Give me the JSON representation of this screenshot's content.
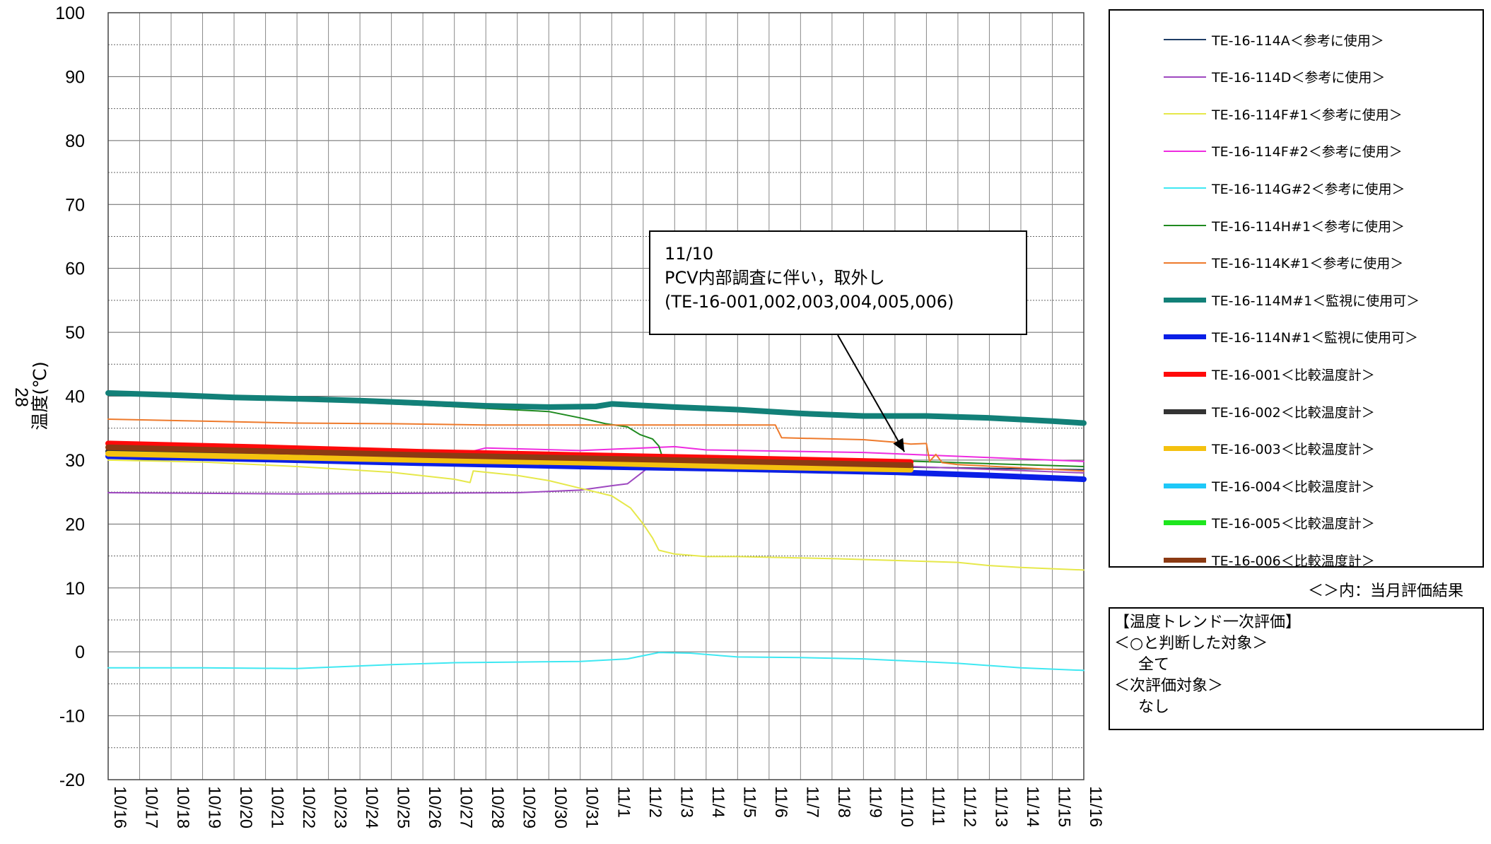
{
  "chart_data": {
    "type": "line",
    "ylabel": "温度(℃)",
    "side_label": "28",
    "ylim": [
      -20,
      100
    ],
    "yticks": [
      -20,
      -10,
      0,
      10,
      20,
      30,
      40,
      50,
      60,
      70,
      80,
      90,
      100
    ],
    "ygrid_step": 5,
    "xlim": [
      0,
      31
    ],
    "x_tick_labels": [
      "10/16",
      "10/17",
      "10/18",
      "10/19",
      "10/20",
      "10/21",
      "10/22",
      "10/23",
      "10/24",
      "10/25",
      "10/26",
      "10/27",
      "10/28",
      "10/29",
      "10/30",
      "10/31",
      "11/1",
      "11/2",
      "11/3",
      "11/4",
      "11/5",
      "11/6",
      "11/7",
      "11/8",
      "11/9",
      "11/10",
      "11/11",
      "11/12",
      "11/13",
      "11/14",
      "11/15",
      "11/16"
    ],
    "grid": true,
    "legend_position": "right",
    "series": [
      {
        "name": "TE-16-114A＜参考に使用＞",
        "color": "#1f3d66",
        "width": 2,
        "points": [
          [
            0,
            30.8
          ],
          [
            10,
            30.2
          ],
          [
            20,
            29.3
          ],
          [
            31,
            28.5
          ]
        ]
      },
      {
        "name": "TE-16-114D＜参考に使用＞",
        "color": "#9e48c0",
        "width": 2,
        "points": [
          [
            0,
            24.9
          ],
          [
            6,
            24.7
          ],
          [
            13,
            24.9
          ],
          [
            15,
            25.3
          ],
          [
            16,
            26.0
          ],
          [
            16.5,
            26.3
          ],
          [
            17,
            28.2
          ],
          [
            17.3,
            29.4
          ],
          [
            20,
            29.4
          ],
          [
            25,
            29.1
          ],
          [
            31,
            28.0
          ]
        ]
      },
      {
        "name": "TE-16-114F#1＜参考に使用＞",
        "color": "#e6e84a",
        "width": 2,
        "points": [
          [
            0,
            30.0
          ],
          [
            3,
            29.7
          ],
          [
            6,
            29.0
          ],
          [
            9,
            28.1
          ],
          [
            11,
            27.0
          ],
          [
            11.5,
            26.5
          ],
          [
            11.6,
            28.3
          ],
          [
            13,
            27.6
          ],
          [
            14,
            26.8
          ],
          [
            15,
            25.6
          ],
          [
            16,
            24.4
          ],
          [
            16.6,
            22.5
          ],
          [
            17,
            20.0
          ],
          [
            17.3,
            17.8
          ],
          [
            17.5,
            15.9
          ],
          [
            18,
            15.3
          ],
          [
            19,
            14.9
          ],
          [
            20,
            14.9
          ],
          [
            21,
            14.8
          ],
          [
            23,
            14.6
          ],
          [
            25,
            14.3
          ],
          [
            27,
            14.0
          ],
          [
            28,
            13.5
          ],
          [
            29,
            13.2
          ],
          [
            31,
            12.8
          ]
        ]
      },
      {
        "name": "TE-16-114F#2＜参考に使用＞",
        "color": "#ee2be0",
        "width": 2,
        "points": [
          [
            0,
            31.6
          ],
          [
            10,
            31.2
          ],
          [
            11.5,
            31.3
          ],
          [
            12,
            31.9
          ],
          [
            15,
            31.5
          ],
          [
            18,
            32.1
          ],
          [
            19,
            31.6
          ],
          [
            24,
            31.2
          ],
          [
            31,
            29.8
          ]
        ]
      },
      {
        "name": "TE-16-114G#2＜参考に使用＞",
        "color": "#3fe8f2",
        "width": 2,
        "points": [
          [
            0,
            -2.5
          ],
          [
            3,
            -2.5
          ],
          [
            6,
            -2.6
          ],
          [
            9,
            -2.0
          ],
          [
            11,
            -1.7
          ],
          [
            13,
            -1.6
          ],
          [
            15,
            -1.5
          ],
          [
            16.5,
            -1.1
          ],
          [
            17.5,
            -0.1
          ],
          [
            18.5,
            -0.2
          ],
          [
            20,
            -0.8
          ],
          [
            22,
            -0.9
          ],
          [
            24,
            -1.1
          ],
          [
            27,
            -1.8
          ],
          [
            29,
            -2.5
          ],
          [
            31,
            -2.9
          ]
        ]
      },
      {
        "name": "TE-16-114H#1＜参考に使用＞",
        "color": "#1f8a1f",
        "width": 2,
        "points": [
          [
            0,
            40.2
          ],
          [
            4,
            39.8
          ],
          [
            7,
            39.2
          ],
          [
            10,
            38.6
          ],
          [
            12,
            38.1
          ],
          [
            14,
            37.6
          ],
          [
            15,
            36.6
          ],
          [
            15.8,
            35.7
          ],
          [
            16.5,
            35.2
          ],
          [
            16.9,
            34.0
          ],
          [
            17.3,
            33.3
          ],
          [
            17.5,
            32.2
          ],
          [
            17.6,
            30.6
          ],
          [
            20,
            30.2
          ],
          [
            25,
            29.9
          ],
          [
            31,
            29.0
          ]
        ]
      },
      {
        "name": "TE-16-114K#1＜参考に使用＞",
        "color": "#ee7a2c",
        "width": 2,
        "points": [
          [
            0,
            36.4
          ],
          [
            3,
            36.1
          ],
          [
            6,
            35.8
          ],
          [
            9,
            35.7
          ],
          [
            12,
            35.5
          ],
          [
            16,
            35.5
          ],
          [
            21.2,
            35.5
          ],
          [
            21.4,
            33.5
          ],
          [
            24,
            33.2
          ],
          [
            25,
            32.8
          ],
          [
            25.5,
            32.5
          ],
          [
            26,
            32.6
          ],
          [
            26.1,
            29.8
          ],
          [
            26.3,
            30.9
          ],
          [
            26.5,
            29.6
          ],
          [
            27,
            29.3
          ],
          [
            31,
            28.3
          ]
        ]
      },
      {
        "name": "TE-16-114M#1＜監視に使用可＞",
        "color": "#128078",
        "width": 8,
        "points": [
          [
            0,
            40.5
          ],
          [
            2,
            40.2
          ],
          [
            4,
            39.8
          ],
          [
            6,
            39.6
          ],
          [
            8,
            39.3
          ],
          [
            10,
            38.9
          ],
          [
            12,
            38.5
          ],
          [
            14,
            38.3
          ],
          [
            15.5,
            38.4
          ],
          [
            16,
            38.8
          ],
          [
            18,
            38.3
          ],
          [
            20,
            37.9
          ],
          [
            22,
            37.3
          ],
          [
            24,
            36.9
          ],
          [
            26,
            36.9
          ],
          [
            28,
            36.6
          ],
          [
            30,
            36.1
          ],
          [
            31,
            35.8
          ]
        ]
      },
      {
        "name": "TE-16-114N#1＜監視に使用可＞",
        "color": "#0a1fe6",
        "width": 8,
        "points": [
          [
            0,
            30.6
          ],
          [
            5,
            30.1
          ],
          [
            10,
            29.5
          ],
          [
            15,
            29.0
          ],
          [
            20,
            28.6
          ],
          [
            25,
            28.1
          ],
          [
            28,
            27.6
          ],
          [
            31,
            27.0
          ]
        ]
      },
      {
        "name": "TE-16-001＜比較温度計＞",
        "color": "#ff0a0a",
        "width": 8,
        "points": [
          [
            0,
            32.6
          ],
          [
            5,
            32.0
          ],
          [
            10,
            31.3
          ],
          [
            15,
            30.8
          ],
          [
            20,
            30.3
          ],
          [
            25.5,
            29.7
          ]
        ]
      },
      {
        "name": "TE-16-002＜比較温度計＞",
        "color": "#333333",
        "width": 8,
        "points": [
          [
            0,
            31.4
          ],
          [
            5,
            30.9
          ],
          [
            10,
            30.3
          ],
          [
            15,
            29.8
          ],
          [
            20,
            29.3
          ],
          [
            25.5,
            28.8
          ]
        ]
      },
      {
        "name": "TE-16-003＜比較温度計＞",
        "color": "#f4c10f",
        "width": 8,
        "points": [
          [
            0,
            31.0
          ],
          [
            5,
            30.5
          ],
          [
            10,
            30.0
          ],
          [
            15,
            29.6
          ],
          [
            20,
            29.0
          ],
          [
            25.5,
            28.5
          ]
        ]
      },
      {
        "name": "TE-16-004＜比較温度計＞",
        "color": "#1ec8f8",
        "width": 8,
        "points": []
      },
      {
        "name": "TE-16-005＜比較温度計＞",
        "color": "#1ee61e",
        "width": 8,
        "points": []
      },
      {
        "name": "TE-16-006＜比較温度計＞",
        "color": "#8b3a13",
        "width": 8,
        "points": [
          [
            0,
            32.0
          ],
          [
            5,
            31.4
          ],
          [
            10,
            30.8
          ],
          [
            15,
            30.3
          ],
          [
            20,
            29.8
          ],
          [
            25.5,
            29.2
          ]
        ]
      }
    ],
    "annotation": {
      "lines": [
        "11/10",
        "PCV内部調査に伴い，取外し",
        "(TE-16-001,002,003,004,005,006)"
      ],
      "arrow_target": [
        25.3,
        31.3
      ]
    }
  },
  "legend_note": "＜＞内：当月評価結果",
  "evaluation": {
    "title": "【温度トレンド一次評価】",
    "line1": "＜○と判断した対象＞",
    "line2": "全て",
    "line3": "＜次評価対象＞",
    "line4": "なし"
  }
}
